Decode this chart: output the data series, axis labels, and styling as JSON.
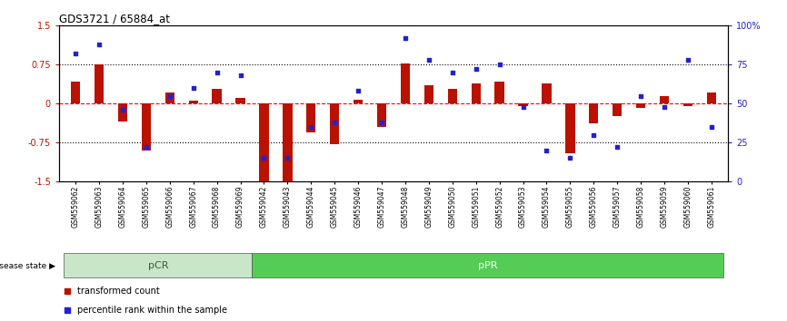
{
  "title": "GDS3721 / 65884_at",
  "samples": [
    "GSM559062",
    "GSM559063",
    "GSM559064",
    "GSM559065",
    "GSM559066",
    "GSM559067",
    "GSM559068",
    "GSM559069",
    "GSM559042",
    "GSM559043",
    "GSM559044",
    "GSM559045",
    "GSM559046",
    "GSM559047",
    "GSM559048",
    "GSM559049",
    "GSM559050",
    "GSM559051",
    "GSM559052",
    "GSM559053",
    "GSM559054",
    "GSM559055",
    "GSM559056",
    "GSM559057",
    "GSM559058",
    "GSM559059",
    "GSM559060",
    "GSM559061"
  ],
  "transformed_count": [
    0.42,
    0.75,
    -0.35,
    -0.9,
    0.22,
    0.05,
    0.28,
    0.1,
    -1.52,
    -1.52,
    -0.55,
    -0.78,
    0.08,
    -0.45,
    0.78,
    0.35,
    0.28,
    0.38,
    0.42,
    -0.05,
    0.38,
    -0.95,
    -0.38,
    -0.25,
    -0.08,
    0.15,
    -0.05,
    0.22
  ],
  "percentile_rank": [
    82,
    88,
    46,
    22,
    55,
    60,
    70,
    68,
    15,
    15,
    35,
    38,
    58,
    38,
    92,
    78,
    70,
    72,
    75,
    48,
    20,
    15,
    30,
    22,
    55,
    48,
    78,
    35
  ],
  "pCR_count": 8,
  "pPR_count": 20,
  "bar_color": "#bb1100",
  "dot_color": "#2222cc",
  "pCR_color": "#c8e6c8",
  "pPR_color": "#55cc55",
  "pCR_text_color": "#336633",
  "pPR_text_color": "#ffffff",
  "ylim_left": [
    -1.5,
    1.5
  ],
  "ylim_right": [
    0,
    100
  ],
  "yticks_left": [
    -1.5,
    -0.75,
    0.0,
    0.75,
    1.5
  ],
  "ytick_labels_left": [
    "-1.5",
    "-0.75",
    "0",
    "0.75",
    "1.5"
  ],
  "yticks_right": [
    0,
    25,
    50,
    75,
    100
  ],
  "ytick_labels_right": [
    "0",
    "25",
    "50",
    "75",
    "100%"
  ],
  "hline_dotted_vals": [
    0.75,
    -0.75
  ],
  "hline_dashed_val": 0.0,
  "bar_width": 0.4
}
